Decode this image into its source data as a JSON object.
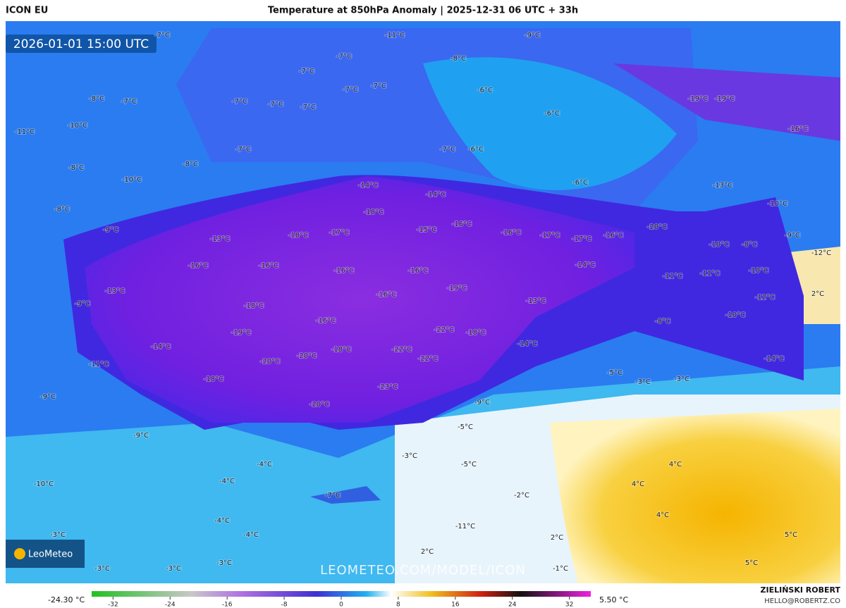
{
  "header": {
    "model": "ICON EU",
    "title": "Temperature at 850hPa Anomaly | 2025-12-31 06 UTC + 33h"
  },
  "timestamp": "2026-01-01 15:00 UTC",
  "logo": "LeoMeteo",
  "watermark": "LEOMETEO.COM/MODEL/ICON",
  "colorbar": {
    "min_label": "-24.30 °C",
    "max_label": "5.50 °C",
    "lim": [
      -35,
      35
    ],
    "ticks": [
      -32,
      -24,
      -16,
      -8,
      0,
      8,
      16,
      24,
      32
    ]
  },
  "author": {
    "name": "ZIELIŃSKI ROBERT",
    "email": "HELLO@ROBERTZ.CO"
  },
  "labels": [
    "-7°C",
    "-11°C",
    "-9°C",
    "-7°C",
    "-8°C",
    "-7°C",
    "-7°C",
    "-7°C",
    "-6°C",
    "-8°C",
    "-7°C",
    "-7°C",
    "-7°C",
    "-7°C",
    "-6°C",
    "-19°C",
    "-19°C",
    "-10°C",
    "-11°C",
    "-16°C",
    "-7°C",
    "-7°C",
    "-6°C",
    "-8°C",
    "-8°C",
    "-10°C",
    "-6°C",
    "-14°C",
    "-13°C",
    "-14°C",
    "-8°C",
    "-10°C",
    "-18°C",
    "-9°C",
    "-15°C",
    "-16°C",
    "-16°C",
    "-17°C",
    "-20°C",
    "-9°C",
    "-18°C",
    "-17°C",
    "-17°C",
    "-16°C",
    "-13°C",
    "-10°C",
    "-8°C",
    "-12°C",
    "-16°C",
    "-16°C",
    "-16°C",
    "-16°C",
    "-14°C",
    "-11°C",
    "-11°C",
    "-10°C",
    "-13°C",
    "-19°C",
    "-16°C",
    "-13°C",
    "-12°C",
    "2°C",
    "-9°C",
    "-18°C",
    "-10°C",
    "-16°C",
    "-8°C",
    "-19°C",
    "-22°C",
    "-18°C",
    "-14°C",
    "-18°C",
    "-22°C",
    "-14°C",
    "-20°C",
    "-20°C",
    "-22°C",
    "-11°C",
    "-14°C",
    "-5°C",
    "-18°C",
    "-3°C",
    "-3°C",
    "-23°C",
    "-9°C",
    "-20°C",
    "-9°C",
    "-5°C",
    "-9°C",
    "-3°C",
    "-4°C",
    "-5°C",
    "4°C",
    "-4°C",
    "4°C",
    "-10°C",
    "-7°C",
    "-2°C",
    "4°C",
    "-4°C",
    "-11°C",
    "-4°C",
    "-3°C",
    "2°C",
    "5°C",
    "2°C",
    "-3°C",
    "-3°C",
    "-3°C",
    "-1°C",
    "5°C"
  ]
}
